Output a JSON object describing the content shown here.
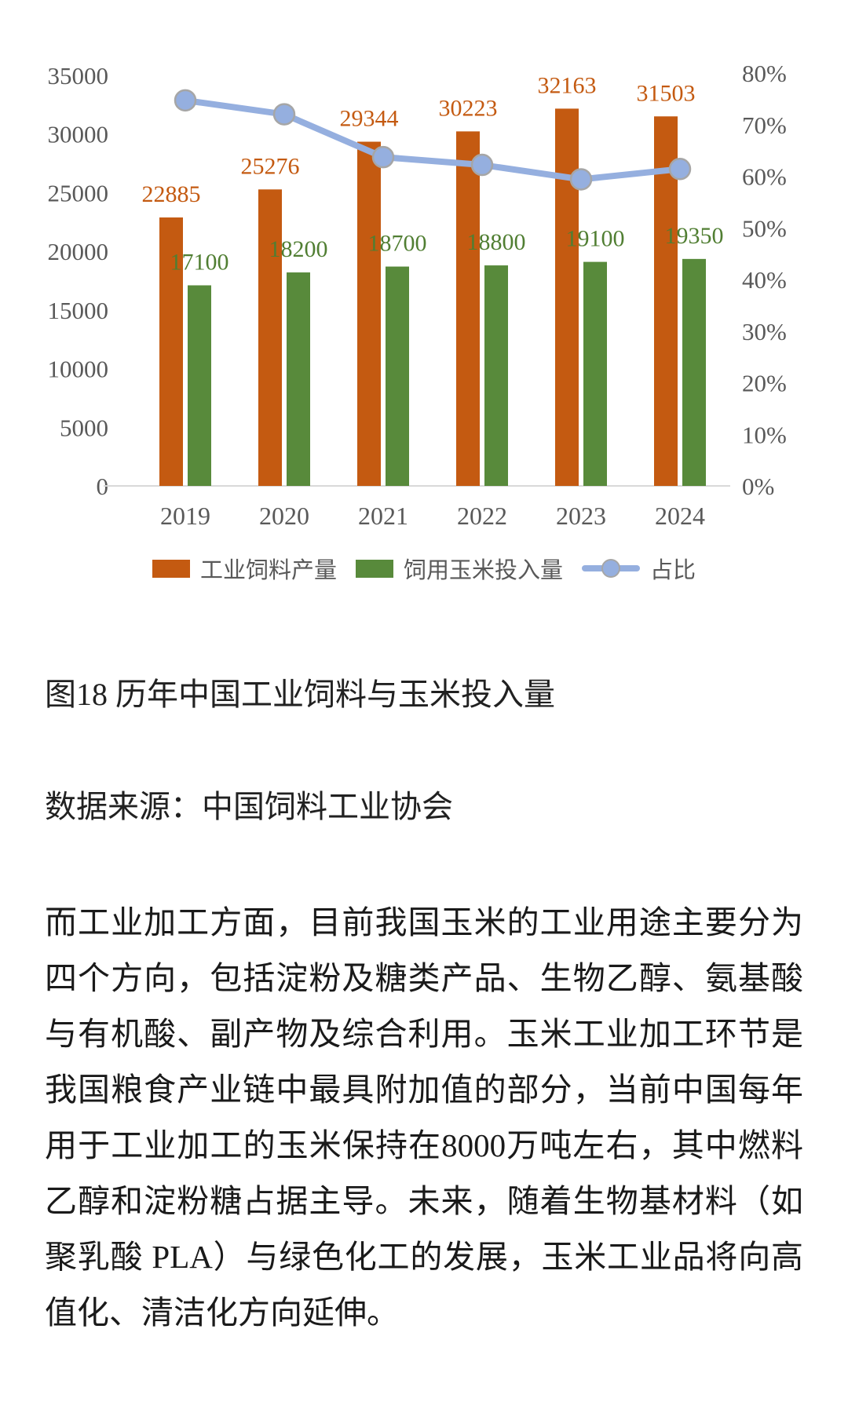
{
  "figure": {
    "caption": "图18 历年中国工业饲料与玉米投入量",
    "source": "数据来源：中国饲料工业协会"
  },
  "paragraph": "而工业加工方面，目前我国玉米的工业用途主要分为四个方向，包括淀粉及糖类产品、生物乙醇、氨基酸与有机酸、副产物及综合利用。玉米工业加工环节是我国粮食产业链中最具附加值的部分，当前中国每年用于工业加工的玉米保持在8000万吨左右，其中燃料乙醇和淀粉糖占据主导。未来，随着生物基材料（如聚乳酸 PLA）与绿色化工的发展，玉米工业品将向高值化、清洁化方向延伸。",
  "chart_data": {
    "type": "combo",
    "title": "",
    "categories": [
      "2019",
      "2020",
      "2021",
      "2022",
      "2023",
      "2024"
    ],
    "series": [
      {
        "name": "工业饲料产量",
        "type": "bar",
        "axis": "left",
        "color": "#C45A11",
        "label_color": "#C45A11",
        "values": [
          22885,
          25276,
          29344,
          30223,
          32163,
          31503
        ]
      },
      {
        "name": "饲用玉米投入量",
        "type": "bar",
        "axis": "left",
        "color": "#588A3B",
        "label_color": "#507E32",
        "values": [
          17100,
          18200,
          18700,
          18800,
          19100,
          19350
        ]
      },
      {
        "name": "占比",
        "type": "line",
        "axis": "right",
        "color": "#95AFDF",
        "marker_stroke": "#A6A6A6",
        "values_percent": [
          74.7,
          72.0,
          63.7,
          62.2,
          59.4,
          61.4
        ]
      }
    ],
    "left_axis": {
      "min": 0,
      "max": 35000,
      "step": 5000,
      "ticks": [
        "0",
        "5000",
        "10000",
        "15000",
        "20000",
        "25000",
        "30000",
        "35000"
      ]
    },
    "right_axis": {
      "min": 0,
      "max": 80,
      "step": 10,
      "ticks": [
        "0%",
        "10%",
        "20%",
        "30%",
        "40%",
        "50%",
        "60%",
        "70%",
        "80%"
      ]
    },
    "axis_text_color": "#595959",
    "baseline_color": "#D9D9D9",
    "grid": false,
    "data_labels": true,
    "legend_position": "bottom"
  }
}
